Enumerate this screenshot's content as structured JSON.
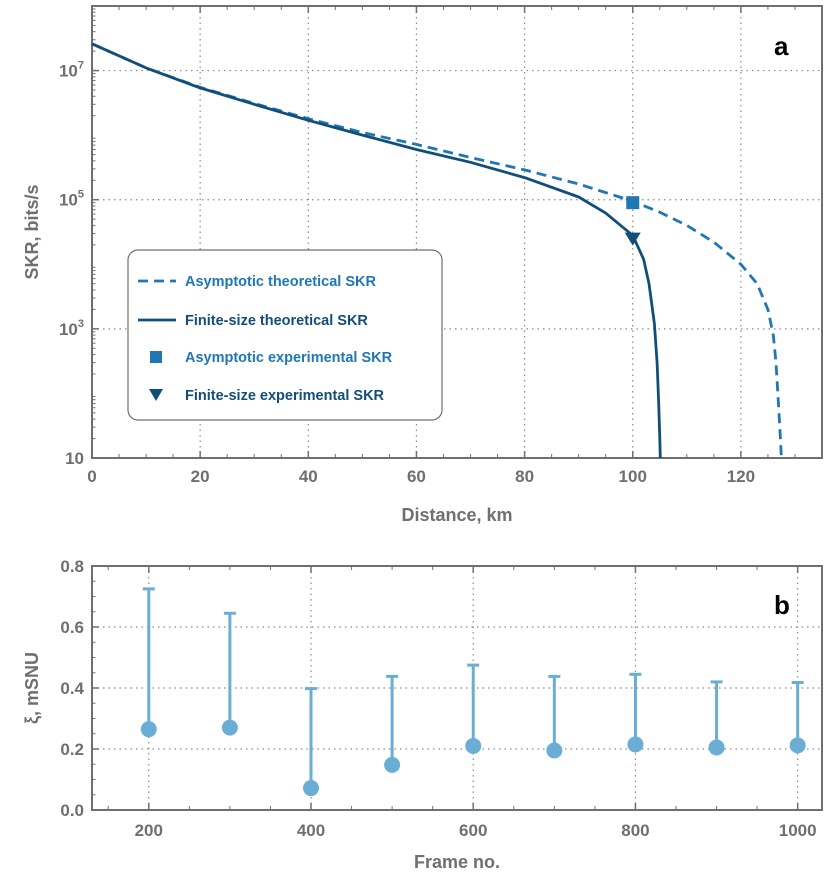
{
  "colors": {
    "asymptotic": "#1f77b4",
    "finite": "#114f7a",
    "error_bars": "#6aaed6",
    "axis": "#6f6f6f",
    "grid": "#8a8a8a"
  },
  "chart_data": [
    {
      "type": "line",
      "panel_label": "a",
      "xlabel": "Distance, km",
      "ylabel": "SKR, bits/s",
      "xlim": [
        0,
        135
      ],
      "ylim": [
        10,
        100000000
      ],
      "y_scale": "log",
      "grid": true,
      "legend_position": "center-left",
      "x_ticks": [
        0,
        20,
        40,
        60,
        80,
        100,
        120
      ],
      "y_ticks": [
        {
          "value": 10,
          "base": "10",
          "exp": ""
        },
        {
          "value": 1000,
          "base": "10",
          "exp": "3"
        },
        {
          "value": 100000,
          "base": "10",
          "exp": "5"
        },
        {
          "value": 10000000,
          "base": "10",
          "exp": "7"
        }
      ],
      "series": [
        {
          "name": "Asymptotic theoretical SKR",
          "style": "dashed",
          "x": [
            0,
            10,
            20,
            30,
            40,
            50,
            60,
            70,
            80,
            90,
            100,
            105,
            110,
            115,
            120,
            123,
            125,
            126,
            126.5,
            127,
            127.3,
            127.5
          ],
          "y": [
            26000000,
            11000000,
            5500000,
            3100000,
            1800000,
            1100000,
            720000,
            450000,
            290000,
            175000,
            95000,
            64000,
            40000,
            22000,
            10000,
            5000,
            2000,
            800,
            300,
            60,
            20,
            10
          ]
        },
        {
          "name": "Finite-size theoretical SKR",
          "style": "solid",
          "x": [
            0,
            10,
            20,
            30,
            40,
            50,
            60,
            70,
            80,
            90,
            95,
            100,
            102,
            103,
            104,
            104.5,
            104.8,
            105,
            105.1
          ],
          "y": [
            26000000,
            11000000,
            5400000,
            3000000,
            1700000,
            1000000,
            600000,
            380000,
            220000,
            110000,
            62000,
            28000,
            12000,
            5000,
            1200,
            300,
            70,
            20,
            10
          ]
        },
        {
          "name": "Asymptotic experimental SKR",
          "marker": "square",
          "x": [
            100
          ],
          "y": [
            90000
          ]
        },
        {
          "name": "Finite-size experimental SKR",
          "marker": "triangle-down",
          "x": [
            100
          ],
          "y": [
            25000
          ]
        }
      ]
    },
    {
      "type": "scatter",
      "panel_label": "b",
      "xlabel": "Frame no.",
      "ylabel": "ξ, mSNU",
      "xlim": [
        130,
        1030
      ],
      "ylim": [
        0.0,
        0.8
      ],
      "grid": true,
      "x_ticks": [
        200,
        400,
        600,
        800,
        1000
      ],
      "y_ticks": [
        "0.0",
        "0.2",
        "0.4",
        "0.6",
        "0.8"
      ],
      "x": [
        200,
        300,
        400,
        500,
        600,
        700,
        800,
        900,
        1000
      ],
      "y": [
        0.265,
        0.27,
        0.072,
        0.148,
        0.21,
        0.195,
        0.215,
        0.205,
        0.212
      ],
      "upper_error": [
        0.725,
        0.645,
        0.398,
        0.438,
        0.475,
        0.438,
        0.445,
        0.42,
        0.418
      ]
    }
  ]
}
